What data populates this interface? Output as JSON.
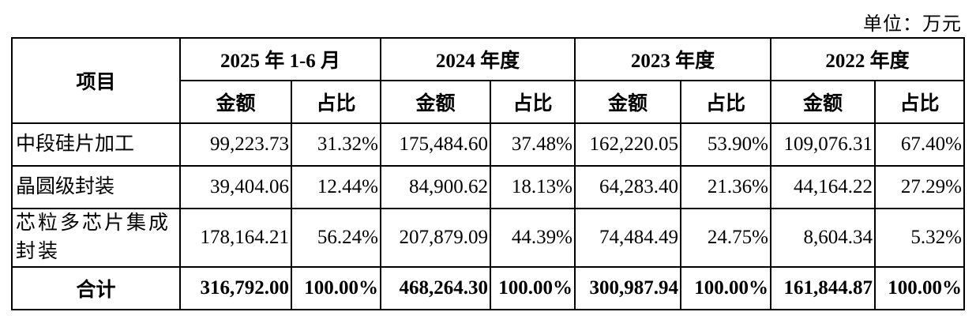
{
  "unit_label": "单位：万元",
  "header": {
    "item": "项目",
    "periods": [
      "2025 年 1-6 月",
      "2024 年度",
      "2023 年度",
      "2022 年度"
    ],
    "amount": "金额",
    "ratio": "占比"
  },
  "rows": [
    {
      "name": "中段硅片加工",
      "values": [
        "99,223.73",
        "31.32%",
        "175,484.60",
        "37.48%",
        "162,220.05",
        "53.90%",
        "109,076.31",
        "67.40%"
      ]
    },
    {
      "name": "晶圆级封装",
      "values": [
        "39,404.06",
        "12.44%",
        "84,900.62",
        "18.13%",
        "64,283.40",
        "21.36%",
        "44,164.22",
        "27.29%"
      ]
    },
    {
      "name": "芯粒多芯片集成封装",
      "values": [
        "178,164.21",
        "56.24%",
        "207,879.09",
        "44.39%",
        "74,484.49",
        "24.75%",
        "8,604.34",
        "5.32%"
      ]
    }
  ],
  "total": {
    "name": "合计",
    "values": [
      "316,792.00",
      "100.00%",
      "468,264.30",
      "100.00%",
      "300,987.94",
      "100.00%",
      "161,844.87",
      "100.00%"
    ]
  }
}
